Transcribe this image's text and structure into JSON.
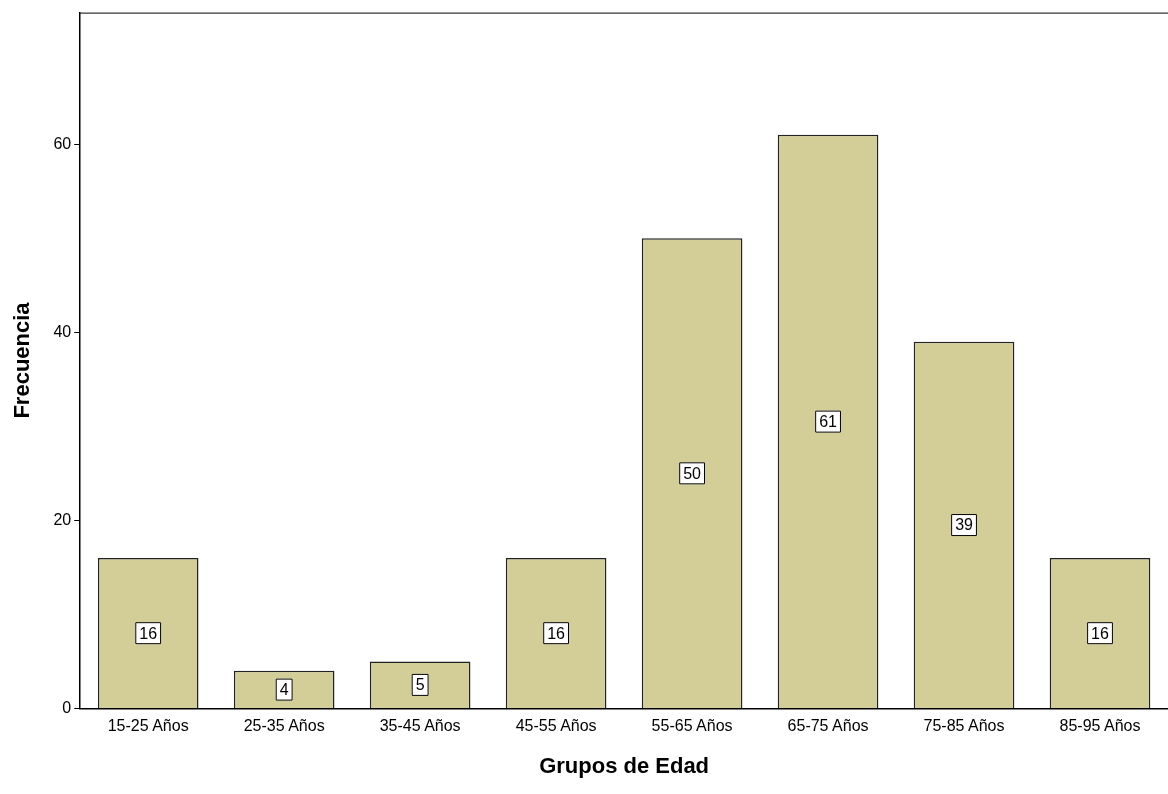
{
  "chart_data": {
    "type": "bar",
    "xlabel": "Grupos de Edad",
    "ylabel": "Frecuencia",
    "categories": [
      "15-25 Años",
      "25-35 Años",
      "35-45 Años",
      "45-55 Años",
      "55-65 Años",
      "65-75 Años",
      "75-85 Años",
      "85-95 Años"
    ],
    "values": [
      16,
      4,
      5,
      16,
      50,
      61,
      39,
      16
    ],
    "color": "#d3ce97",
    "ylim": [
      0,
      74
    ],
    "yticks": [
      0,
      20,
      40,
      60
    ],
    "grid": false,
    "data_labels": true
  }
}
